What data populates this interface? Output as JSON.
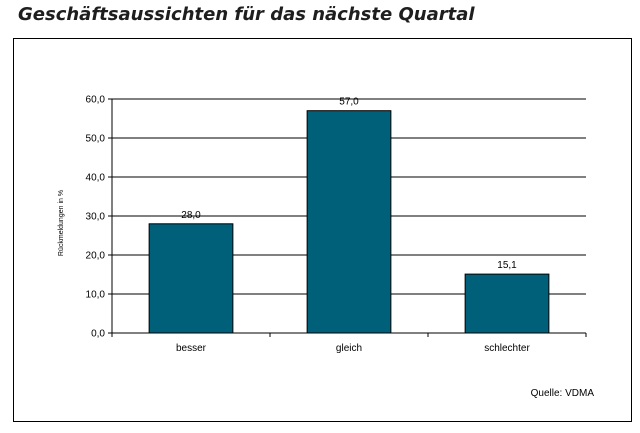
{
  "title": "Geschäftsaussichten für das nächste Quartal",
  "colors": {
    "bar": "#00607a",
    "bar_outline": "#000000",
    "grid": "#000000"
  },
  "chart_data": {
    "type": "bar",
    "categories": [
      "besser",
      "gleich",
      "schlechter"
    ],
    "values": [
      28.0,
      57.0,
      15.1
    ],
    "data_labels": [
      "28,0",
      "57,0",
      "15,1"
    ],
    "ylabel": "Rückmeldungen in %",
    "ylim": [
      0,
      60
    ],
    "yticks": [
      "0,0",
      "10,0",
      "20,0",
      "30,0",
      "40,0",
      "50,0",
      "60,0"
    ],
    "grid": true,
    "source": "Quelle: VDMA"
  }
}
